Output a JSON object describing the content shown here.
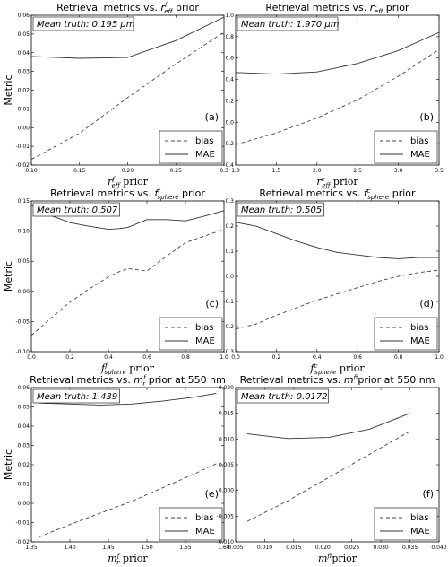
{
  "figure": {
    "metric_label": "Metric"
  },
  "legend_labels": {
    "bias": "bias",
    "mae": "MAE"
  },
  "chart_data": [
    {
      "type": "line",
      "panel": "(a)",
      "title": "Retrieval metrics vs. r_eff^f prior",
      "xlabel": "r_eff^f prior",
      "ylabel": "Metric",
      "annotation": "Mean truth: 0.195 μm",
      "xlim": [
        0.1,
        0.3
      ],
      "ylim": [
        -0.02,
        0.06
      ],
      "xticks": [
        "0.10",
        "0.15",
        "0.20",
        "0.25",
        "0.3"
      ],
      "yticks": [
        "-0.02",
        "-0.01",
        "0.00",
        "0.01",
        "0.02",
        "0.03",
        "0.04",
        "0.05",
        "0.06"
      ],
      "x": [
        0.1,
        0.15,
        0.2,
        0.25,
        0.3
      ],
      "series": [
        {
          "name": "bias",
          "style": "dashed",
          "values": [
            -0.017,
            -0.003,
            0.016,
            0.034,
            0.051
          ]
        },
        {
          "name": "MAE",
          "style": "solid",
          "values": [
            0.038,
            0.037,
            0.0375,
            0.0465,
            0.059
          ]
        }
      ],
      "legend": "bottom-right",
      "grid": false
    },
    {
      "type": "line",
      "panel": "(b)",
      "title": "Retrieval metrics vs. r_eff^c prior",
      "xlabel": "r_eff^c prior",
      "ylabel": "",
      "annotation": "Mean truth: 1.970 μm",
      "xlim": [
        1.0,
        3.5
      ],
      "ylim": [
        -0.4,
        1.0
      ],
      "xticks": [
        "1.0",
        "1.5",
        "2.0",
        "2.5",
        "3.0",
        "3.5"
      ],
      "yticks": [
        "-0.4",
        "-0.2",
        "0.0",
        "0.2",
        "0.4",
        "0.6",
        "0.8",
        "1.0"
      ],
      "x": [
        1.0,
        1.5,
        2.0,
        2.5,
        3.0,
        3.5
      ],
      "series": [
        {
          "name": "bias",
          "style": "dashed",
          "values": [
            -0.21,
            -0.1,
            0.04,
            0.21,
            0.43,
            0.68
          ]
        },
        {
          "name": "MAE",
          "style": "solid",
          "values": [
            0.465,
            0.45,
            0.47,
            0.55,
            0.67,
            0.84
          ]
        }
      ],
      "legend": "bottom-right",
      "grid": false
    },
    {
      "type": "line",
      "panel": "(c)",
      "title": "Retrieval metrics vs. f_sphere^f prior",
      "xlabel": "f_sphere^f prior",
      "ylabel": "Metric",
      "annotation": "Mean truth: 0.507",
      "xlim": [
        0.0,
        1.0
      ],
      "ylim": [
        -0.1,
        0.15
      ],
      "xticks": [
        "0.0",
        "0.2",
        "0.4",
        "0.6",
        "0.8",
        "1.0"
      ],
      "yticks": [
        "-0.10",
        "-0.05",
        "0.00",
        "0.05",
        "0.10",
        "0.15"
      ],
      "x": [
        0.0,
        0.1,
        0.2,
        0.3,
        0.4,
        0.45,
        0.5,
        0.6,
        0.7,
        0.8,
        0.9,
        1.0
      ],
      "series": [
        {
          "name": "bias",
          "style": "dashed",
          "values": [
            -0.073,
            -0.045,
            -0.018,
            0.004,
            0.024,
            0.032,
            0.038,
            0.034,
            0.058,
            0.081,
            0.092,
            0.103
          ]
        },
        {
          "name": "MAE",
          "style": "solid",
          "values": [
            0.143,
            0.126,
            0.114,
            0.108,
            0.103,
            0.104,
            0.106,
            0.119,
            0.119,
            0.117,
            0.125,
            0.134
          ]
        }
      ],
      "legend": "bottom-right",
      "grid": false
    },
    {
      "type": "line",
      "panel": "(d)",
      "title": "Retrieval metrics vs. f_sphere^c prior",
      "xlabel": "f_sphere^c prior",
      "ylabel": "",
      "annotation": "Mean truth: 0.505",
      "xlim": [
        0.0,
        1.0
      ],
      "ylim": [
        -0.3,
        0.3
      ],
      "xticks": [
        "0.0",
        "0.2",
        "0.4",
        "0.6",
        "0.8",
        "1.0"
      ],
      "yticks": [
        "-0.3",
        "-0.2",
        "-0.1",
        "0.0",
        "0.1",
        "0.2",
        "0.3"
      ],
      "x": [
        0.0,
        0.1,
        0.2,
        0.3,
        0.4,
        0.5,
        0.6,
        0.7,
        0.8,
        0.9,
        1.0
      ],
      "series": [
        {
          "name": "bias",
          "style": "dashed",
          "values": [
            -0.21,
            -0.19,
            -0.155,
            -0.125,
            -0.095,
            -0.07,
            -0.045,
            -0.02,
            0.0,
            0.015,
            0.025
          ]
        },
        {
          "name": "MAE",
          "style": "solid",
          "values": [
            0.215,
            0.2,
            0.17,
            0.14,
            0.115,
            0.095,
            0.085,
            0.075,
            0.07,
            0.075,
            0.075
          ]
        }
      ],
      "legend": "bottom-right",
      "grid": false
    },
    {
      "type": "line",
      "panel": "(e)",
      "title": "Retrieval metrics vs. m_r^f prior at 550 nm",
      "xlabel": "m_r^f prior",
      "ylabel": "Metric",
      "annotation": "Mean truth: 1.439",
      "xlim": [
        1.35,
        1.6
      ],
      "ylim": [
        -0.02,
        0.06
      ],
      "xticks": [
        "1.35",
        "1.40",
        "1.45",
        "1.50",
        "1.55",
        "1.60"
      ],
      "yticks": [
        "-0.02",
        "-0.01",
        "0.00",
        "0.01",
        "0.02",
        "0.03",
        "0.04",
        "0.05",
        "0.06"
      ],
      "x": [
        1.36,
        1.4,
        1.44,
        1.48,
        1.52,
        1.56,
        1.59
      ],
      "series": [
        {
          "name": "bias",
          "style": "dashed",
          "values": [
            -0.0175,
            -0.011,
            -0.005,
            0.001,
            0.008,
            0.015,
            0.0205
          ]
        },
        {
          "name": "MAE",
          "style": "solid",
          "values": [
            0.052,
            0.0515,
            0.051,
            0.0515,
            0.053,
            0.055,
            0.057
          ]
        }
      ],
      "legend": "bottom-right",
      "grid": false
    },
    {
      "type": "line",
      "panel": "(f)",
      "title": "Retrieval metrics vs. m_i^f prior at 550 nm",
      "xlabel": "m_i^f prior",
      "ylabel": "",
      "annotation": "Mean truth: 0.0172",
      "xlim": [
        0.005,
        0.04
      ],
      "ylim": [
        -0.01,
        0.02
      ],
      "xticks": [
        "0.005",
        "0.010",
        "0.015",
        "0.020",
        "0.025",
        "0.030",
        "0.035",
        "0.040"
      ],
      "yticks": [
        "-0.010",
        "-0.005",
        "0.000",
        "0.005",
        "0.010",
        "0.015",
        "0.020"
      ],
      "x": [
        0.007,
        0.014,
        0.021,
        0.028,
        0.035
      ],
      "series": [
        {
          "name": "bias",
          "style": "dashed",
          "values": [
            -0.006,
            -0.002,
            0.0025,
            0.007,
            0.0115
          ]
        },
        {
          "name": "MAE",
          "style": "solid",
          "values": [
            0.011,
            0.0101,
            0.0103,
            0.0119,
            0.015
          ]
        }
      ],
      "legend": "bottom-right",
      "grid": false
    }
  ]
}
